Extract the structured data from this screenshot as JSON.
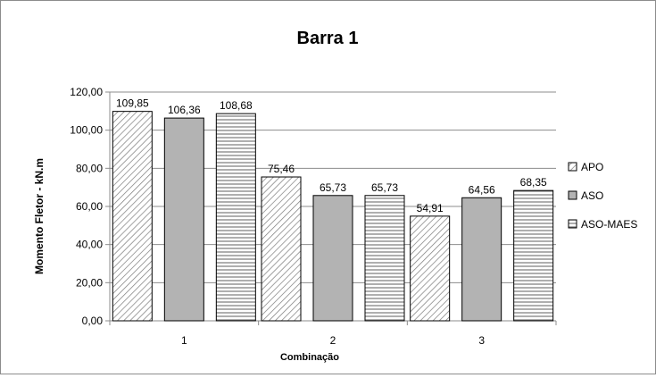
{
  "chart_data": {
    "type": "bar",
    "title": "Barra 1",
    "xlabel": "Combinação",
    "ylabel": "Momento Fletor - kN.m",
    "categories": [
      "1",
      "2",
      "3"
    ],
    "ylim": [
      0,
      120
    ],
    "yticks": [
      "0,00",
      "20,00",
      "40,00",
      "60,00",
      "80,00",
      "100,00",
      "120,00"
    ],
    "grid": true,
    "legend_position": "right",
    "series": [
      {
        "name": "APO",
        "values": [
          109.85,
          75.46,
          54.91
        ],
        "labels": [
          "109,85",
          "75,46",
          "54,91"
        ],
        "fill": "diagonal-hatch"
      },
      {
        "name": "ASO",
        "values": [
          106.36,
          65.73,
          64.56
        ],
        "labels": [
          "106,36",
          "65,73",
          "64,56"
        ],
        "fill": "#b3b3b3"
      },
      {
        "name": "ASO-MAES",
        "values": [
          108.68,
          65.73,
          68.35
        ],
        "labels": [
          "108,68",
          "65,73",
          "68,35"
        ],
        "fill": "horizontal-hatch"
      }
    ]
  }
}
